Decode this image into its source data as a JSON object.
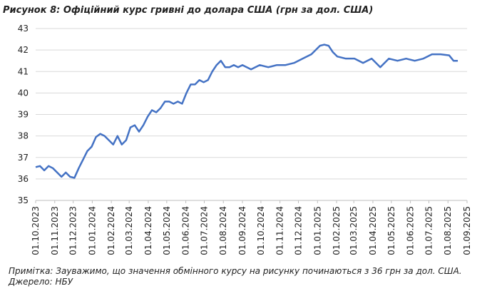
{
  "chart_data": {
    "type": "line",
    "title": "Рисунок 8: Офіційний курс гривні до долара США (грн за дол. США)",
    "note": "Примітка: Зауважимо, що значення обмінного курсу на рисунку починаються з 36 грн за дол. США.",
    "source": "Джерело: НБУ",
    "x": [
      "2023-10-01",
      "2023-10-08",
      "2023-10-15",
      "2023-10-22",
      "2023-10-29",
      "2023-11-05",
      "2023-11-12",
      "2023-11-19",
      "2023-11-26",
      "2023-12-03",
      "2023-12-10",
      "2023-12-17",
      "2023-12-24",
      "2023-12-31",
      "2024-01-07",
      "2024-01-14",
      "2024-01-21",
      "2024-01-28",
      "2024-02-04",
      "2024-02-11",
      "2024-02-18",
      "2024-02-25",
      "2024-03-03",
      "2024-03-10",
      "2024-03-17",
      "2024-03-24",
      "2024-03-31",
      "2024-04-07",
      "2024-04-14",
      "2024-04-21",
      "2024-04-28",
      "2024-05-05",
      "2024-05-12",
      "2024-05-19",
      "2024-05-26",
      "2024-06-02",
      "2024-06-09",
      "2024-06-16",
      "2024-06-23",
      "2024-06-30",
      "2024-07-07",
      "2024-07-14",
      "2024-07-21",
      "2024-07-28",
      "2024-08-04",
      "2024-08-11",
      "2024-08-18",
      "2024-08-25",
      "2024-09-01",
      "2024-09-15",
      "2024-09-29",
      "2024-10-13",
      "2024-10-27",
      "2024-11-10",
      "2024-11-24",
      "2024-12-08",
      "2024-12-22",
      "2025-01-05",
      "2025-01-12",
      "2025-01-19",
      "2025-01-26",
      "2025-02-02",
      "2025-02-16",
      "2025-03-02",
      "2025-03-16",
      "2025-03-30",
      "2025-04-13",
      "2025-04-27",
      "2025-05-11",
      "2025-05-25",
      "2025-06-08",
      "2025-06-22",
      "2025-07-06",
      "2025-07-20",
      "2025-08-03",
      "2025-08-10",
      "2025-08-17"
    ],
    "series": [
      {
        "name": "Офіційний курс",
        "color": "#4472c4",
        "values": [
          36.55,
          36.6,
          36.4,
          36.6,
          36.5,
          36.3,
          36.1,
          36.3,
          36.1,
          36.05,
          36.5,
          36.9,
          37.3,
          37.5,
          37.95,
          38.1,
          38.0,
          37.8,
          37.6,
          38.0,
          37.6,
          37.8,
          38.4,
          38.5,
          38.2,
          38.5,
          38.9,
          39.2,
          39.1,
          39.3,
          39.6,
          39.6,
          39.5,
          39.6,
          39.5,
          40.0,
          40.4,
          40.4,
          40.6,
          40.5,
          40.6,
          41.0,
          41.3,
          41.5,
          41.2,
          41.2,
          41.3,
          41.2,
          41.3,
          41.1,
          41.3,
          41.2,
          41.3,
          41.3,
          41.4,
          41.6,
          41.8,
          42.2,
          42.25,
          42.2,
          41.9,
          41.7,
          41.6,
          41.6,
          41.4,
          41.6,
          41.2,
          41.6,
          41.5,
          41.6,
          41.5,
          41.6,
          41.8,
          41.8,
          41.75,
          41.5,
          41.5
        ]
      }
    ],
    "xlim": [
      "2023-10-01",
      "2025-09-01"
    ],
    "xticks": [
      {
        "value": "2023-10-01",
        "label": "01.10.2023"
      },
      {
        "value": "2023-11-01",
        "label": "01.11.2023"
      },
      {
        "value": "2023-12-01",
        "label": "01.12.2023"
      },
      {
        "value": "2024-01-01",
        "label": "01.01.2024"
      },
      {
        "value": "2024-02-01",
        "label": "01.02.2024"
      },
      {
        "value": "2024-03-01",
        "label": "01.03.2024"
      },
      {
        "value": "2024-04-01",
        "label": "01.04.2024"
      },
      {
        "value": "2024-05-01",
        "label": "01.05.2024"
      },
      {
        "value": "2024-06-01",
        "label": "01.06.2024"
      },
      {
        "value": "2024-07-01",
        "label": "01.07.2024"
      },
      {
        "value": "2024-08-01",
        "label": "01.08.2024"
      },
      {
        "value": "2024-09-01",
        "label": "01.09.2024"
      },
      {
        "value": "2024-10-01",
        "label": "01.10.2024"
      },
      {
        "value": "2024-11-01",
        "label": "01.11.2024"
      },
      {
        "value": "2024-12-01",
        "label": "01.12.2024"
      },
      {
        "value": "2025-01-01",
        "label": "01.01.2025"
      },
      {
        "value": "2025-02-01",
        "label": "01.02.2025"
      },
      {
        "value": "2025-03-01",
        "label": "01.03.2025"
      },
      {
        "value": "2025-04-01",
        "label": "01.04.2025"
      },
      {
        "value": "2025-05-01",
        "label": "01.05.2025"
      },
      {
        "value": "2025-06-01",
        "label": "01.06.2025"
      },
      {
        "value": "2025-07-01",
        "label": "01.07.2025"
      },
      {
        "value": "2025-08-01",
        "label": "01.08.2025"
      },
      {
        "value": "2025-09-01",
        "label": "01.09.2025"
      }
    ],
    "ylim": [
      35,
      43
    ],
    "yticks": [
      35,
      36,
      37,
      38,
      39,
      40,
      41,
      42,
      43
    ],
    "grid": true
  }
}
